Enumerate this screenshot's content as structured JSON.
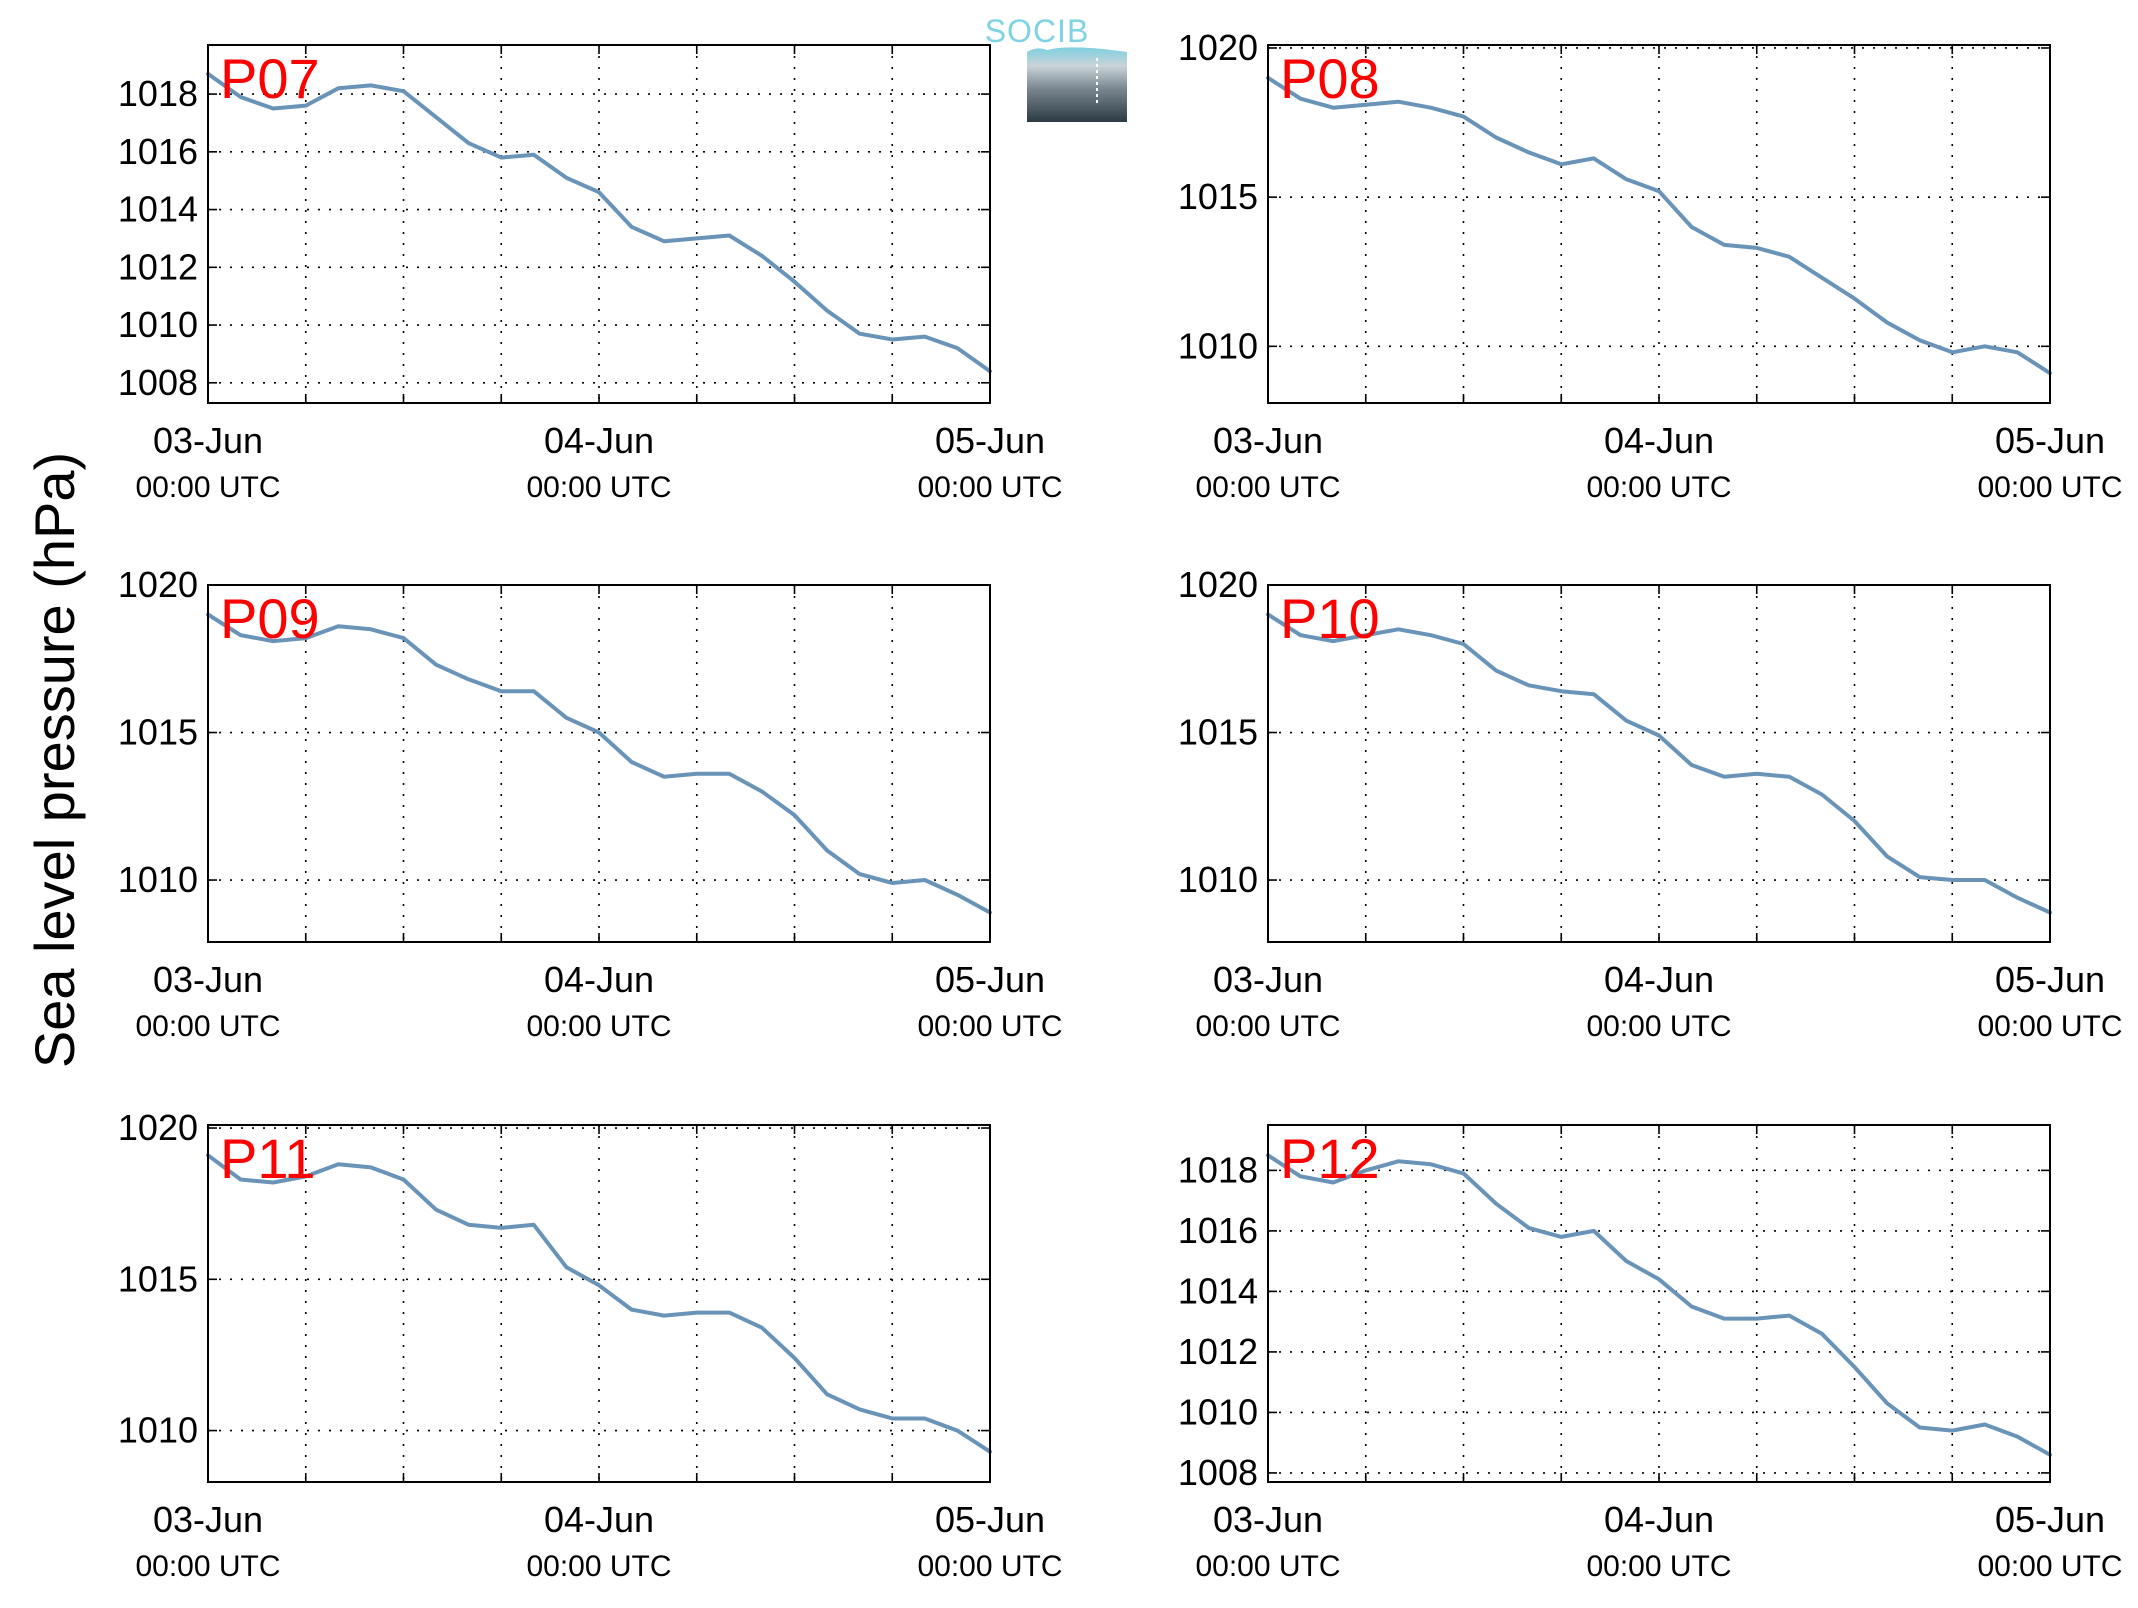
{
  "figure": {
    "ylabel": "Sea level pressure (hPa)",
    "logo_text": "SOCIB",
    "line_color": "#6a93b8",
    "label_color": "#ff0000"
  },
  "chart_data": [
    {
      "type": "line",
      "panel_label": "P07",
      "x_ticks": [
        {
          "date": "03-Jun",
          "time": "00:00 UTC"
        },
        {
          "date": "04-Jun",
          "time": "00:00 UTC"
        },
        {
          "date": "05-Jun",
          "time": "00:00 UTC"
        }
      ],
      "xlim": [
        "2015-06-03 00:00",
        "2015-06-05 00:00"
      ],
      "ylim": [
        1007.3,
        1019.7
      ],
      "y_ticks": [
        1008,
        1010,
        1012,
        1014,
        1016,
        1018
      ],
      "grid": true,
      "series": [
        {
          "x": [
            "06-03 00:00",
            "06-03 02:00",
            "06-03 04:00",
            "06-03 06:00",
            "06-03 08:00",
            "06-03 10:00",
            "06-03 12:00",
            "06-03 14:00",
            "06-03 16:00",
            "06-03 18:00",
            "06-03 20:00",
            "06-03 22:00",
            "06-04 00:00",
            "06-04 02:00",
            "06-04 04:00",
            "06-04 06:00",
            "06-04 08:00",
            "06-04 10:00",
            "06-04 12:00",
            "06-04 14:00",
            "06-04 16:00",
            "06-04 18:00",
            "06-04 20:00",
            "06-04 22:00",
            "06-05 00:00"
          ],
          "values": [
            1018.7,
            1017.9,
            1017.5,
            1017.6,
            1018.2,
            1018.3,
            1018.1,
            1017.2,
            1016.3,
            1015.8,
            1015.9,
            1015.1,
            1014.6,
            1013.4,
            1012.9,
            1013.0,
            1013.1,
            1012.4,
            1011.5,
            1010.5,
            1009.7,
            1009.5,
            1009.6,
            1009.2,
            1008.4
          ]
        }
      ]
    },
    {
      "type": "line",
      "panel_label": "P08",
      "x_ticks": [
        {
          "date": "03-Jun",
          "time": "00:00 UTC"
        },
        {
          "date": "04-Jun",
          "time": "00:00 UTC"
        },
        {
          "date": "05-Jun",
          "time": "00:00 UTC"
        }
      ],
      "xlim": [
        "2015-06-03 00:00",
        "2015-06-05 00:00"
      ],
      "ylim": [
        1008.1,
        1020.1
      ],
      "y_ticks": [
        1010,
        1015,
        1020
      ],
      "grid": true,
      "series": [
        {
          "x": [
            "06-03 00:00",
            "06-03 02:00",
            "06-03 04:00",
            "06-03 06:00",
            "06-03 08:00",
            "06-03 10:00",
            "06-03 12:00",
            "06-03 14:00",
            "06-03 16:00",
            "06-03 18:00",
            "06-03 20:00",
            "06-03 22:00",
            "06-04 00:00",
            "06-04 02:00",
            "06-04 04:00",
            "06-04 06:00",
            "06-04 08:00",
            "06-04 10:00",
            "06-04 12:00",
            "06-04 14:00",
            "06-04 16:00",
            "06-04 18:00",
            "06-04 20:00",
            "06-04 22:00",
            "06-05 00:00"
          ],
          "values": [
            1019.0,
            1018.3,
            1018.0,
            1018.1,
            1018.2,
            1018.0,
            1017.7,
            1017.0,
            1016.5,
            1016.1,
            1016.3,
            1015.6,
            1015.2,
            1014.0,
            1013.4,
            1013.3,
            1013.0,
            1012.3,
            1011.6,
            1010.8,
            1010.2,
            1009.8,
            1010.0,
            1009.8,
            1009.1
          ]
        }
      ]
    },
    {
      "type": "line",
      "panel_label": "P09",
      "x_ticks": [
        {
          "date": "03-Jun",
          "time": "00:00 UTC"
        },
        {
          "date": "04-Jun",
          "time": "00:00 UTC"
        },
        {
          "date": "05-Jun",
          "time": "00:00 UTC"
        }
      ],
      "xlim": [
        "2015-06-03 00:00",
        "2015-06-05 00:00"
      ],
      "ylim": [
        1007.9,
        1020.0
      ],
      "y_ticks": [
        1010,
        1015,
        1020
      ],
      "grid": true,
      "series": [
        {
          "x": [
            "06-03 00:00",
            "06-03 02:00",
            "06-03 04:00",
            "06-03 06:00",
            "06-03 08:00",
            "06-03 10:00",
            "06-03 12:00",
            "06-03 14:00",
            "06-03 16:00",
            "06-03 18:00",
            "06-03 20:00",
            "06-03 22:00",
            "06-04 00:00",
            "06-04 02:00",
            "06-04 04:00",
            "06-04 06:00",
            "06-04 08:00",
            "06-04 10:00",
            "06-04 12:00",
            "06-04 14:00",
            "06-04 16:00",
            "06-04 18:00",
            "06-04 20:00",
            "06-04 22:00",
            "06-05 00:00"
          ],
          "values": [
            1019.0,
            1018.3,
            1018.1,
            1018.2,
            1018.6,
            1018.5,
            1018.2,
            1017.3,
            1016.8,
            1016.4,
            1016.4,
            1015.5,
            1015.0,
            1014.0,
            1013.5,
            1013.6,
            1013.6,
            1013.0,
            1012.2,
            1011.0,
            1010.2,
            1009.9,
            1010.0,
            1009.5,
            1008.9
          ]
        }
      ]
    },
    {
      "type": "line",
      "panel_label": "P10",
      "x_ticks": [
        {
          "date": "03-Jun",
          "time": "00:00 UTC"
        },
        {
          "date": "04-Jun",
          "time": "00:00 UTC"
        },
        {
          "date": "05-Jun",
          "time": "00:00 UTC"
        }
      ],
      "xlim": [
        "2015-06-03 00:00",
        "2015-06-05 00:00"
      ],
      "ylim": [
        1007.9,
        1020.0
      ],
      "y_ticks": [
        1010,
        1015,
        1020
      ],
      "grid": true,
      "series": [
        {
          "x": [
            "06-03 00:00",
            "06-03 02:00",
            "06-03 04:00",
            "06-03 06:00",
            "06-03 08:00",
            "06-03 10:00",
            "06-03 12:00",
            "06-03 14:00",
            "06-03 16:00",
            "06-03 18:00",
            "06-03 20:00",
            "06-03 22:00",
            "06-04 00:00",
            "06-04 02:00",
            "06-04 04:00",
            "06-04 06:00",
            "06-04 08:00",
            "06-04 10:00",
            "06-04 12:00",
            "06-04 14:00",
            "06-04 16:00",
            "06-04 18:00",
            "06-04 20:00",
            "06-04 22:00",
            "06-05 00:00"
          ],
          "values": [
            1019.0,
            1018.3,
            1018.1,
            1018.3,
            1018.5,
            1018.3,
            1018.0,
            1017.1,
            1016.6,
            1016.4,
            1016.3,
            1015.4,
            1014.9,
            1013.9,
            1013.5,
            1013.6,
            1013.5,
            1012.9,
            1012.0,
            1010.8,
            1010.1,
            1010.0,
            1010.0,
            1009.4,
            1008.9
          ]
        }
      ]
    },
    {
      "type": "line",
      "panel_label": "P11",
      "x_ticks": [
        {
          "date": "03-Jun",
          "time": "00:00 UTC"
        },
        {
          "date": "04-Jun",
          "time": "00:00 UTC"
        },
        {
          "date": "05-Jun",
          "time": "00:00 UTC"
        }
      ],
      "xlim": [
        "2015-06-03 00:00",
        "2015-06-05 00:00"
      ],
      "ylim": [
        1008.3,
        1020.1
      ],
      "y_ticks": [
        1010,
        1015,
        1020
      ],
      "grid": true,
      "series": [
        {
          "x": [
            "06-03 00:00",
            "06-03 02:00",
            "06-03 04:00",
            "06-03 06:00",
            "06-03 08:00",
            "06-03 10:00",
            "06-03 12:00",
            "06-03 14:00",
            "06-03 16:00",
            "06-03 18:00",
            "06-03 20:00",
            "06-03 22:00",
            "06-04 00:00",
            "06-04 02:00",
            "06-04 04:00",
            "06-04 06:00",
            "06-04 08:00",
            "06-04 10:00",
            "06-04 12:00",
            "06-04 14:00",
            "06-04 16:00",
            "06-04 18:00",
            "06-04 20:00",
            "06-04 22:00",
            "06-05 00:00"
          ],
          "values": [
            1019.1,
            1018.3,
            1018.2,
            1018.4,
            1018.8,
            1018.7,
            1018.3,
            1017.3,
            1016.8,
            1016.7,
            1016.8,
            1015.4,
            1014.8,
            1014.0,
            1013.8,
            1013.9,
            1013.9,
            1013.4,
            1012.4,
            1011.2,
            1010.7,
            1010.4,
            1010.4,
            1010.0,
            1009.3
          ]
        }
      ]
    },
    {
      "type": "line",
      "panel_label": "P12",
      "x_ticks": [
        {
          "date": "03-Jun",
          "time": "00:00 UTC"
        },
        {
          "date": "04-Jun",
          "time": "00:00 UTC"
        },
        {
          "date": "05-Jun",
          "time": "00:00 UTC"
        }
      ],
      "xlim": [
        "2015-06-03 00:00",
        "2015-06-05 00:00"
      ],
      "ylim": [
        1007.7,
        1019.5
      ],
      "y_ticks": [
        1008,
        1010,
        1012,
        1014,
        1016,
        1018
      ],
      "grid": true,
      "series": [
        {
          "x": [
            "06-03 00:00",
            "06-03 02:00",
            "06-03 04:00",
            "06-03 06:00",
            "06-03 08:00",
            "06-03 10:00",
            "06-03 12:00",
            "06-03 14:00",
            "06-03 16:00",
            "06-03 18:00",
            "06-03 20:00",
            "06-03 22:00",
            "06-04 00:00",
            "06-04 02:00",
            "06-04 04:00",
            "06-04 06:00",
            "06-04 08:00",
            "06-04 10:00",
            "06-04 12:00",
            "06-04 14:00",
            "06-04 16:00",
            "06-04 18:00",
            "06-04 20:00",
            "06-04 22:00",
            "06-05 00:00"
          ],
          "values": [
            1018.5,
            1017.8,
            1017.6,
            1018.0,
            1018.3,
            1018.2,
            1017.9,
            1016.9,
            1016.1,
            1015.8,
            1016.0,
            1015.0,
            1014.4,
            1013.5,
            1013.1,
            1013.1,
            1013.2,
            1012.6,
            1011.5,
            1010.3,
            1009.5,
            1009.4,
            1009.6,
            1009.2,
            1008.6
          ]
        }
      ]
    }
  ]
}
